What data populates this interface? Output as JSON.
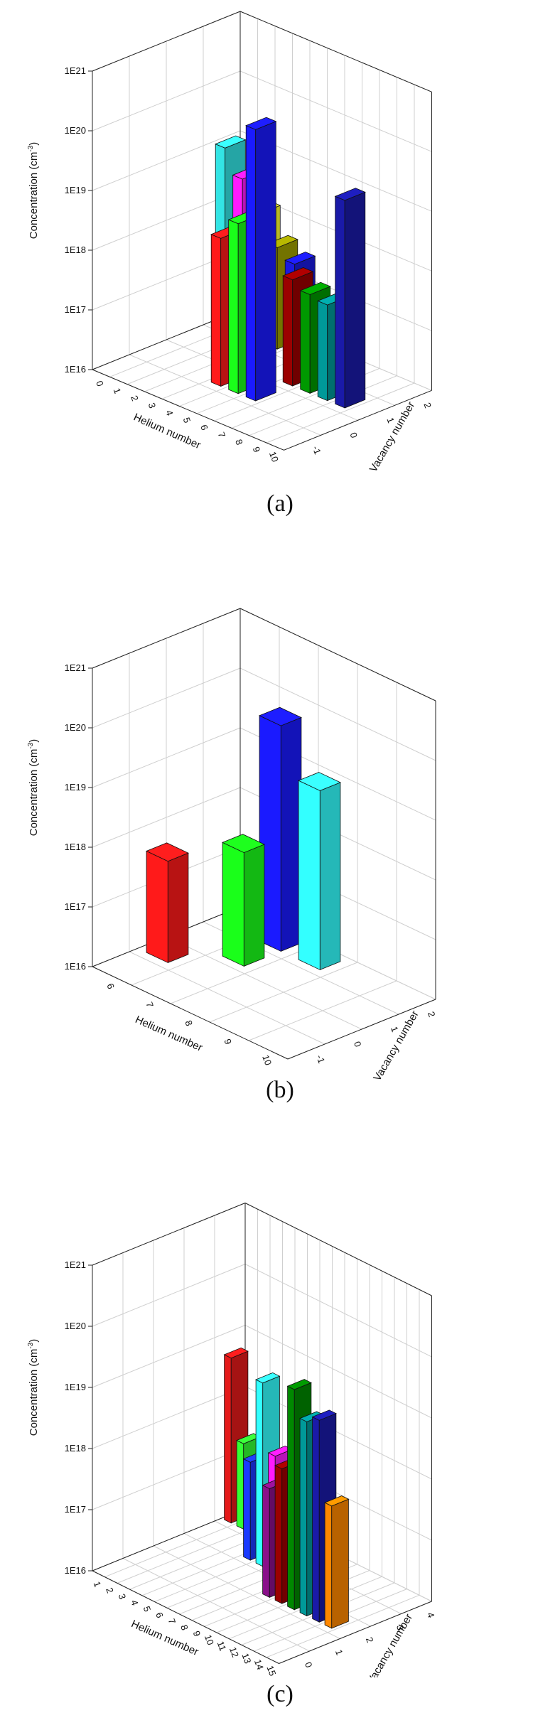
{
  "panels": [
    {
      "label": "(a)",
      "chart_data": {
        "type": "bar3d",
        "ylabel": "Concentration (cm",
        "ylabel_sup": "-3",
        "ylabel_end": ")",
        "yscale": "log",
        "ylim": [
          1e+16,
          1e+21
        ],
        "yticks": [
          "1E16",
          "1E17",
          "1E18",
          "1E19",
          "1E20",
          "1E21"
        ],
        "xlabel": "Helium number",
        "xticks": [
          "0",
          "1",
          "2",
          "3",
          "4",
          "5",
          "6",
          "7",
          "8",
          "9",
          "10"
        ],
        "zlabel": "Vacancy number",
        "zticks": [
          "-1",
          "0",
          "1",
          "2"
        ],
        "bars": [
          {
            "he": 0,
            "vac": 2,
            "value": 1e+19,
            "color": "#33e5e5"
          },
          {
            "he": 1,
            "vac": 2,
            "value": 4e+18,
            "color": "#ff1aff"
          },
          {
            "he": 2,
            "vac": 2,
            "value": 1.4e+18,
            "color": "#ffff33"
          },
          {
            "he": 3,
            "vac": 2,
            "value": 5e+17,
            "color": "#a0a000"
          },
          {
            "he": 4,
            "vac": 2,
            "value": 3.5e+17,
            "color": "#1a1ae0"
          },
          {
            "he": 4,
            "vac": 0,
            "value": 3e+18,
            "color": "#ff1a1a"
          },
          {
            "he": 5,
            "vac": 0,
            "value": 7e+18,
            "color": "#1aff1a"
          },
          {
            "he": 6,
            "vac": 0,
            "value": 3.5e+20,
            "color": "#1a1aff"
          },
          {
            "he": 6,
            "vac": 1,
            "value": 6e+17,
            "color": "#9b0000"
          },
          {
            "he": 7,
            "vac": 1,
            "value": 4.5e+17,
            "color": "#009900"
          },
          {
            "he": 8,
            "vac": 1,
            "value": 4e+17,
            "color": "#009999"
          },
          {
            "he": 9,
            "vac": 1,
            "value": 3e+19,
            "color": "#1a1aa8"
          }
        ]
      }
    },
    {
      "label": "(b)",
      "chart_data": {
        "type": "bar3d",
        "ylabel": "Concentration (cm",
        "ylabel_sup": "-3",
        "ylabel_end": ")",
        "yscale": "log",
        "ylim": [
          1e+16,
          1e+21
        ],
        "yticks": [
          "1E16",
          "1E17",
          "1E18",
          "1E19",
          "1E20",
          "1E21"
        ],
        "xlabel": "Helium number",
        "xticks": [
          "6",
          "7",
          "8",
          "9",
          "10"
        ],
        "zlabel": "Vacancy number",
        "zticks": [
          "-1",
          "0",
          "1",
          "2"
        ],
        "bars": [
          {
            "he": 6,
            "vac": 0,
            "value": 5e+17,
            "color": "#ff1a1a"
          },
          {
            "he": 7,
            "vac": 1,
            "value": 8e+17,
            "color": "#1aff1a"
          },
          {
            "he": 7,
            "vac": 2,
            "value": 6e+19,
            "color": "#1a1aff"
          },
          {
            "he": 8,
            "vac": 2,
            "value": 1e+19,
            "color": "#33ffff"
          }
        ]
      }
    },
    {
      "label": "(c)",
      "chart_data": {
        "type": "bar3d",
        "ylabel": "Concentration (cm",
        "ylabel_sup": "-3",
        "ylabel_end": ")",
        "yscale": "log",
        "ylim": [
          1e+16,
          1e+21
        ],
        "yticks": [
          "1E16",
          "1E17",
          "1E18",
          "1E19",
          "1E20",
          "1E21"
        ],
        "xlabel": "Helium number",
        "xticks": [
          "1",
          "2",
          "3",
          "4",
          "5",
          "6",
          "7",
          "8",
          "9",
          "10",
          "11",
          "12",
          "13",
          "14",
          "15"
        ],
        "zlabel": "Vacancy number",
        "zticks": [
          "0",
          "1",
          "2",
          "3",
          "4"
        ],
        "bars": [
          {
            "he": 1,
            "vac": 4,
            "value": 5e+18,
            "color": "#e51a1a"
          },
          {
            "he": 2,
            "vac": 4,
            "value": 2.5e+17,
            "color": "#33ff33"
          },
          {
            "he": 5,
            "vac": 3,
            "value": 4e+17,
            "color": "#1a3aff"
          },
          {
            "he": 6,
            "vac": 3,
            "value": 1e+19,
            "color": "#33ffff"
          },
          {
            "he": 7,
            "vac": 3,
            "value": 8e+17,
            "color": "#ff1aff"
          },
          {
            "he": 8,
            "vac": 3,
            "value": 1.2e+17,
            "color": "#ffff33"
          },
          {
            "he": 9,
            "vac": 3,
            "value": 1.5e+16,
            "color": "#a0a000"
          },
          {
            "he": 9,
            "vac": 2,
            "value": 6e+17,
            "color": "#8a108a"
          },
          {
            "he": 10,
            "vac": 2,
            "value": 1.6e+18,
            "color": "#9b0000"
          },
          {
            "he": 11,
            "vac": 2,
            "value": 4e+19,
            "color": "#008800"
          },
          {
            "he": 12,
            "vac": 2,
            "value": 1.5e+19,
            "color": "#009999"
          },
          {
            "he": 13,
            "vac": 2,
            "value": 2e+19,
            "color": "#1a1aa8"
          },
          {
            "he": 14,
            "vac": 2,
            "value": 1e+18,
            "color": "#ff8800"
          }
        ]
      }
    }
  ]
}
